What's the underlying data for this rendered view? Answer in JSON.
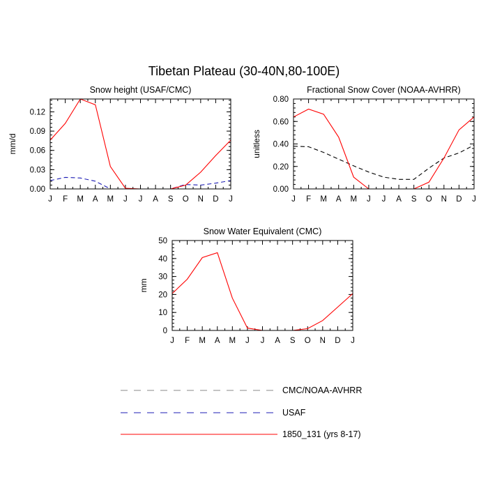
{
  "figure": {
    "title": "Tibetan Plateau (30-40N,80-100E)"
  },
  "chart_data": [
    {
      "type": "line",
      "title": "Snow height (USAF/CMC)",
      "xlabel": "",
      "ylabel": "mm/d",
      "categories": [
        "J",
        "F",
        "M",
        "A",
        "M",
        "J",
        "J",
        "A",
        "S",
        "O",
        "N",
        "D",
        "J"
      ],
      "ylim": [
        0,
        0.14
      ],
      "yticks": [
        0.0,
        0.03,
        0.06,
        0.09,
        0.12
      ],
      "ytick_labels": [
        "0.00",
        "0.03",
        "0.06",
        "0.09",
        "0.12"
      ],
      "grid": false,
      "series": [
        {
          "name": "USAF",
          "color": "#1c1cb4",
          "dash": "dashed",
          "values": [
            0.013,
            0.018,
            0.017,
            0.012,
            0.0,
            0.0,
            0.0,
            0.0,
            0.0,
            0.007,
            0.006,
            0.009,
            0.013
          ]
        },
        {
          "name": "1850_131 (yrs 8-17)",
          "color": "#ff0000",
          "dash": "solid",
          "values": [
            0.076,
            0.102,
            0.14,
            0.131,
            0.035,
            0.001,
            0.0,
            0.0,
            0.0,
            0.006,
            0.026,
            0.052,
            0.076
          ]
        }
      ]
    },
    {
      "type": "line",
      "title": "Fractional Snow Cover (NOAA-AVHRR)",
      "xlabel": "",
      "ylabel": "unitless",
      "categories": [
        "J",
        "F",
        "M",
        "A",
        "M",
        "J",
        "J",
        "A",
        "S",
        "O",
        "N",
        "D",
        "J"
      ],
      "ylim": [
        0,
        0.8
      ],
      "yticks": [
        0.0,
        0.2,
        0.4,
        0.6,
        0.8
      ],
      "ytick_labels": [
        "0.00",
        "0.20",
        "0.40",
        "0.60",
        "0.80"
      ],
      "grid": false,
      "series": [
        {
          "name": "CMC/NOAA-AVHRR",
          "color": "#000000",
          "dash": "dashed",
          "values": [
            0.38,
            0.375,
            0.325,
            0.265,
            0.205,
            0.15,
            0.105,
            0.085,
            0.085,
            0.185,
            0.275,
            0.32,
            0.39
          ]
        },
        {
          "name": "1850_131 (yrs 8-17)",
          "color": "#ff0000",
          "dash": "solid",
          "values": [
            0.64,
            0.71,
            0.665,
            0.46,
            0.105,
            0.0,
            0.0,
            0.0,
            0.0,
            0.06,
            0.275,
            0.525,
            0.64
          ]
        }
      ]
    },
    {
      "type": "line",
      "title": "Snow Water Equivalent (CMC)",
      "xlabel": "",
      "ylabel": "mm",
      "categories": [
        "J",
        "F",
        "M",
        "A",
        "M",
        "J",
        "J",
        "A",
        "S",
        "O",
        "N",
        "D",
        "J"
      ],
      "ylim": [
        0,
        50
      ],
      "yticks": [
        0,
        10,
        20,
        30,
        40,
        50
      ],
      "ytick_labels": [
        "0",
        "10",
        "20",
        "30",
        "40",
        "50"
      ],
      "grid": false,
      "series": [
        {
          "name": "CMC/NOAA-AVHRR",
          "color": "#000000",
          "dash": "dashed",
          "values": [
            0,
            0,
            0,
            0,
            0,
            0,
            0,
            0,
            0,
            0,
            0,
            0,
            0
          ]
        },
        {
          "name": "1850_131 (yrs 8-17)",
          "color": "#ff0000",
          "dash": "solid",
          "values": [
            20.5,
            28.5,
            40.5,
            43.2,
            18.0,
            1.3,
            0.0,
            0.0,
            0.0,
            1.0,
            5.5,
            13.0,
            20.5
          ]
        }
      ]
    }
  ],
  "legend": {
    "placement": "bottom-center",
    "items": [
      {
        "label": "CMC/NOAA-AVHRR",
        "color": "#888888",
        "dash": "dashed"
      },
      {
        "label": "USAF",
        "color": "#1c1cb4",
        "dash": "dashed"
      },
      {
        "label": "1850_131 (yrs 8-17)",
        "color": "#ff0000",
        "dash": "solid"
      }
    ]
  }
}
